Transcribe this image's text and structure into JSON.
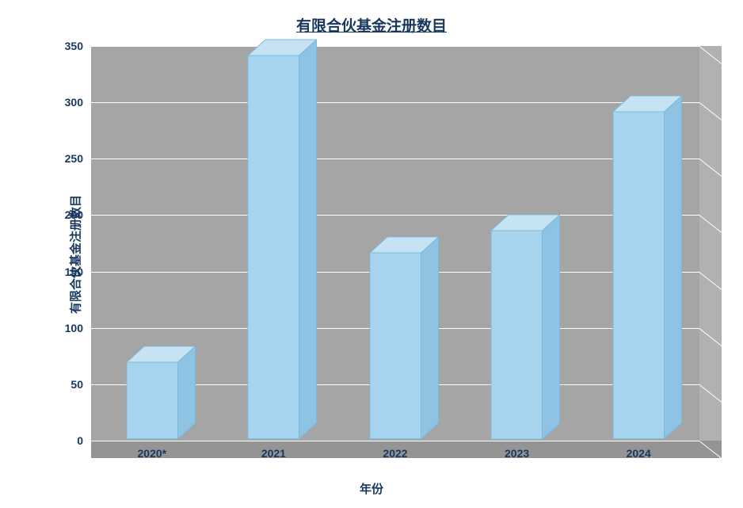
{
  "chart": {
    "type": "bar3d",
    "title": "有限合伙基金注册数目",
    "title_fontsize": 19,
    "title_color": "#17375e",
    "ylabel": "有限合伙基金注册数目",
    "ylabel_fontsize": 15,
    "ylabel_color": "#17375e",
    "xlabel": "年份",
    "xlabel_fontsize": 15,
    "xlabel_color": "#17375e",
    "categories": [
      "2020*",
      "2021",
      "2022",
      "2023",
      "2024"
    ],
    "values": [
      68,
      340,
      165,
      185,
      290
    ],
    "ylim": [
      0,
      350
    ],
    "ytick_step": 50,
    "yticks": [
      0,
      50,
      100,
      150,
      200,
      250,
      300,
      350
    ],
    "bar_fill_front": "#a6d3ed",
    "bar_fill_top": "#c5e3f3",
    "bar_fill_side": "#8fc3e3",
    "bar_border": "#7fb8da",
    "plot_bg": "#a5a5a5",
    "plot_wall_right": "#b1b1b1",
    "plot_floor": "#949494",
    "gridline_color": "#ffffff",
    "tick_label_color": "#17375e",
    "tick_label_fontsize": 14,
    "bar_width_ratio": 0.42,
    "depth_x": 22,
    "depth_y": 20
  }
}
